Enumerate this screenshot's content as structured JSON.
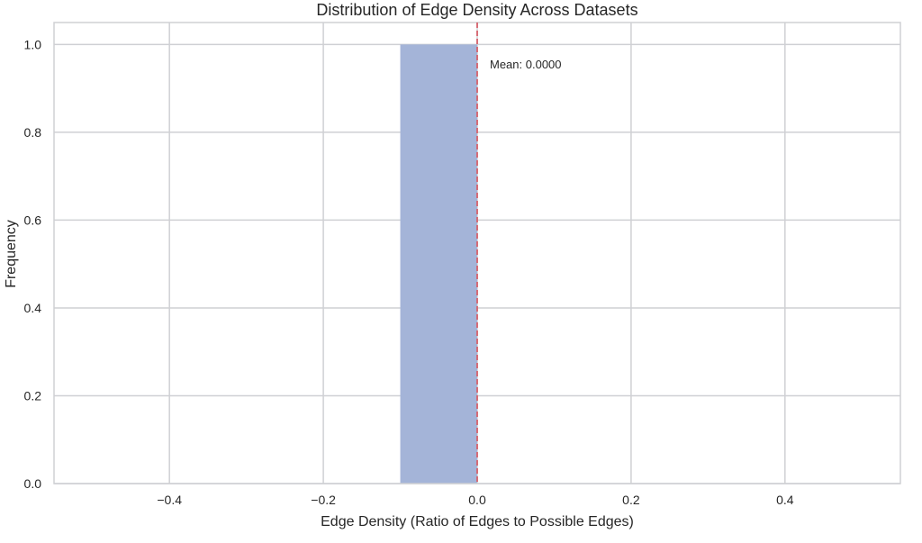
{
  "chart_data": {
    "type": "bar",
    "title": "Distribution of Edge Density Across Datasets",
    "xlabel": "Edge Density (Ratio of Edges to Possible Edges)",
    "ylabel": "Frequency",
    "xlim": [
      -0.55,
      0.55
    ],
    "ylim": [
      0,
      1.05
    ],
    "xticks": [
      -0.4,
      -0.2,
      0.0,
      0.2,
      0.4
    ],
    "xtick_labels": [
      "−0.4",
      "−0.2",
      "0.0",
      "0.2",
      "0.4"
    ],
    "yticks": [
      0.0,
      0.2,
      0.4,
      0.6,
      0.8,
      1.0
    ],
    "ytick_labels": [
      "0.0",
      "0.2",
      "0.4",
      "0.6",
      "0.8",
      "1.0"
    ],
    "grid": true,
    "bins": [
      {
        "x0": -0.1,
        "x1": 0.0,
        "count": 1.0
      }
    ],
    "mean_line": {
      "value": 0.0,
      "label": "Mean: 0.0000"
    },
    "colors": {
      "bar": "#a4b4d8",
      "mean_line": "#d6616b",
      "grid": "#cfd0d4",
      "spine": "#cfd0d4"
    }
  }
}
